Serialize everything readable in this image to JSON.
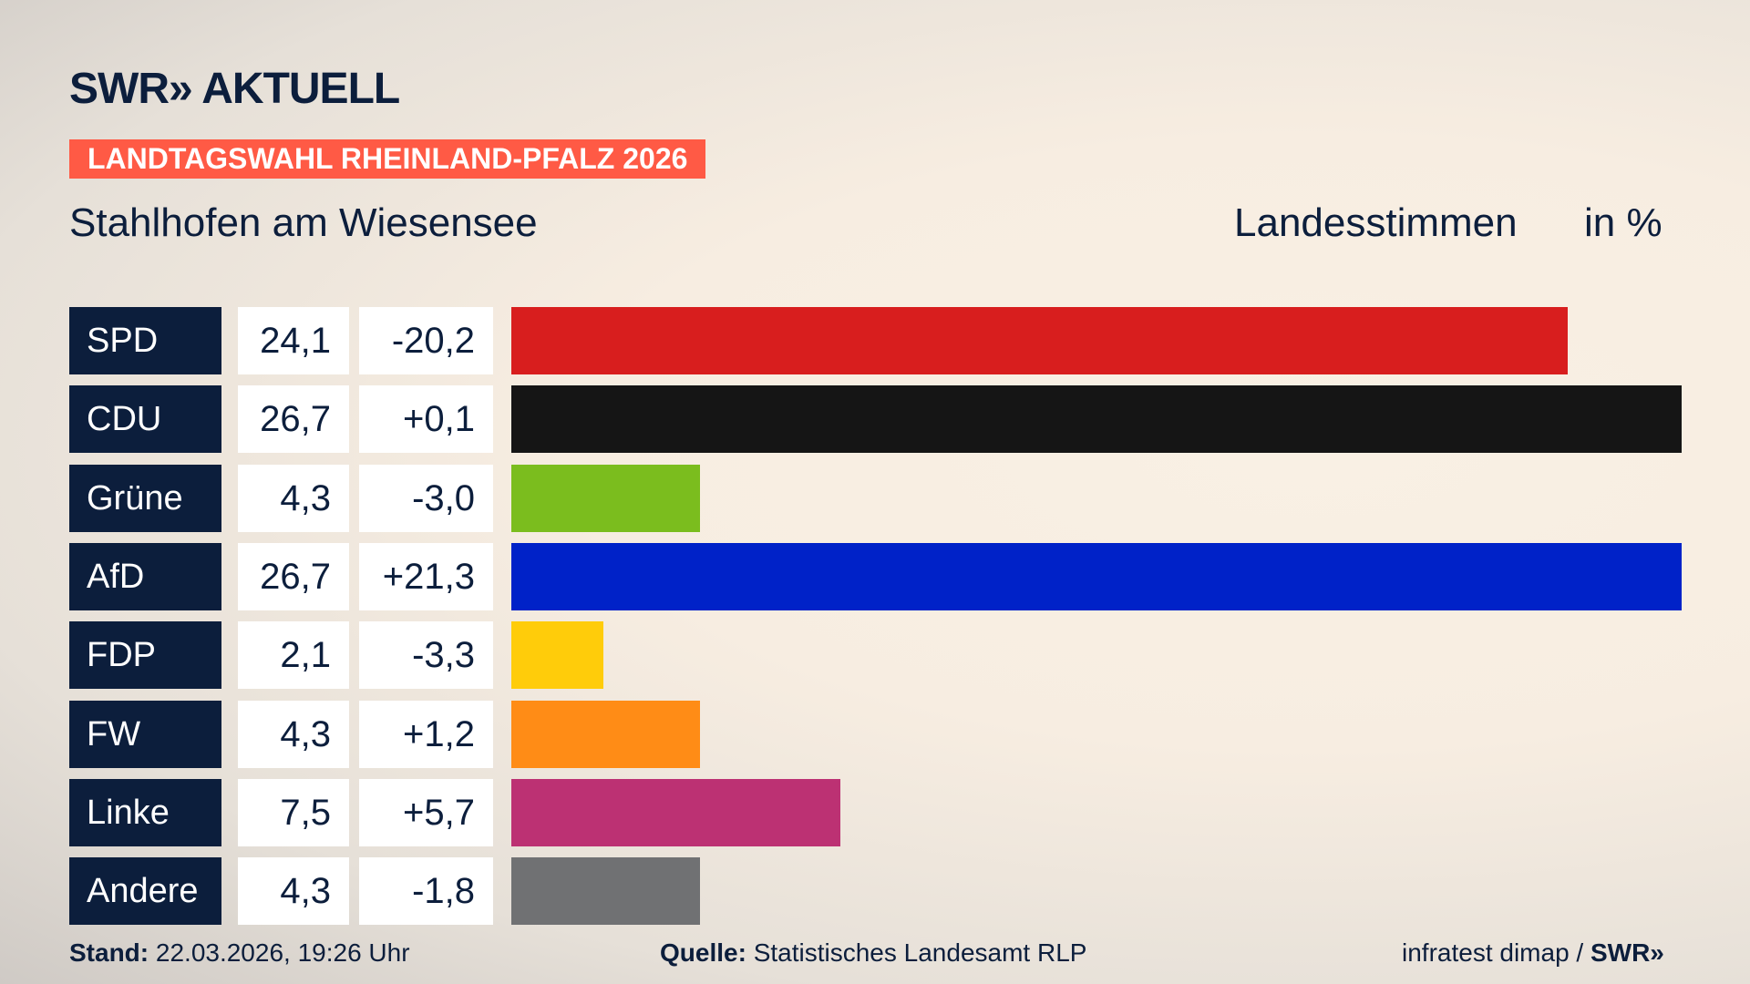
{
  "header": {
    "logo": "SWR» AKTUELL",
    "banner": "LANDTAGSWAHL RHEINLAND-PFALZ 2026",
    "subtitle": "Stahlhofen am Wiesensee",
    "measure": "Landesstimmen",
    "unit": "in %"
  },
  "chart_data": {
    "type": "bar",
    "orientation": "horizontal",
    "categories": [
      "SPD",
      "CDU",
      "Grüne",
      "AfD",
      "FDP",
      "FW",
      "Linke",
      "Andere"
    ],
    "values": [
      24.1,
      26.7,
      4.3,
      26.7,
      2.1,
      4.3,
      7.5,
      4.3
    ],
    "value_labels": [
      "24,1",
      "26,7",
      "4,3",
      "26,7",
      "2,1",
      "4,3",
      "7,5",
      "4,3"
    ],
    "changes": [
      "-20,2",
      "+0,1",
      "-3,0",
      "+21,3",
      "-3,3",
      "+1,2",
      "+5,7",
      "-1,8"
    ],
    "colors": [
      "#d81e1e",
      "#151515",
      "#7bbd1e",
      "#0022c8",
      "#ffcc0a",
      "#ff8c16",
      "#bc3173",
      "#707173"
    ],
    "xlim": [
      0,
      26.7
    ],
    "grid": false
  },
  "footer": {
    "stand_label": "Stand:",
    "stand_value": "22.03.2026, 19:26 Uhr",
    "source_label": "Quelle:",
    "source_value": "Statistisches Landesamt RLP",
    "credit": "infratest dimap / ",
    "credit_logo": "SWR»"
  }
}
